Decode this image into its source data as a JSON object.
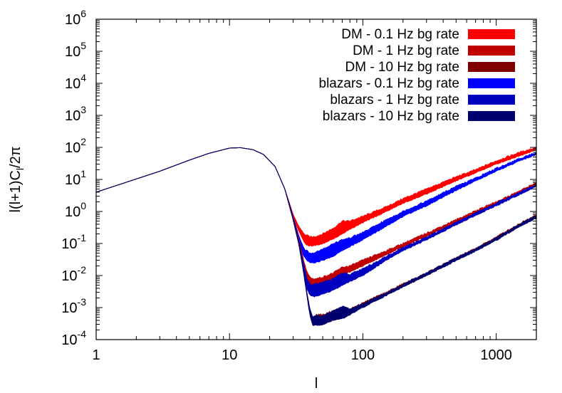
{
  "chart_data": {
    "type": "line",
    "title": "",
    "xlabel": "l",
    "ylabel": "l(l+1)C_l/2π",
    "ylabel_parts": {
      "a": "l(l+1)C",
      "sub": "l",
      "b": "/2π"
    },
    "xscale": "log",
    "yscale": "log",
    "xlim": [
      1,
      2000
    ],
    "ylim": [
      0.0001,
      1000000
    ],
    "grid": false,
    "legend_position": "top-right",
    "x_ticks": [
      {
        "value": 1,
        "label": "1"
      },
      {
        "value": 10,
        "label": "10"
      },
      {
        "value": 100,
        "label": "100"
      },
      {
        "value": 1000,
        "label": "1000"
      }
    ],
    "y_ticks": [
      {
        "value": 0.0001,
        "base": "10",
        "exp": "-4"
      },
      {
        "value": 0.001,
        "base": "10",
        "exp": "-3"
      },
      {
        "value": 0.01,
        "base": "10",
        "exp": "-2"
      },
      {
        "value": 0.1,
        "base": "10",
        "exp": "-1"
      },
      {
        "value": 1,
        "base": "10",
        "exp": "0"
      },
      {
        "value": 10,
        "base": "10",
        "exp": "1"
      },
      {
        "value": 100,
        "base": "10",
        "exp": "2"
      },
      {
        "value": 1000,
        "base": "10",
        "exp": "3"
      },
      {
        "value": 10000,
        "base": "10",
        "exp": "4"
      },
      {
        "value": 100000,
        "base": "10",
        "exp": "5"
      },
      {
        "value": 1000000,
        "base": "10",
        "exp": "6"
      }
    ],
    "series": [
      {
        "name": "DM - 0.1 Hz bg rate",
        "color": "#ff0000",
        "x": [
          1,
          3,
          5,
          7,
          10,
          12,
          15,
          18,
          22,
          26,
          30,
          33,
          36,
          38,
          40,
          42,
          45,
          50,
          60,
          70,
          80,
          100,
          150,
          200,
          300,
          500,
          700,
          1000,
          1500,
          2000
        ],
        "lower": [
          4,
          18,
          40,
          65,
          95,
          98,
          85,
          60,
          25,
          5,
          0.7,
          0.25,
          0.12,
          0.09,
          0.085,
          0.085,
          0.09,
          0.1,
          0.14,
          0.2,
          0.28,
          0.45,
          1.0,
          1.8,
          3.5,
          9,
          16,
          30,
          55,
          85
        ],
        "upper": [
          4,
          18,
          40,
          65,
          95,
          98,
          85,
          60,
          25,
          5,
          0.8,
          0.35,
          0.2,
          0.18,
          0.16,
          0.16,
          0.17,
          0.2,
          0.3,
          0.5,
          0.5,
          0.7,
          1.4,
          2.5,
          5,
          12,
          20,
          38,
          70,
          100
        ]
      },
      {
        "name": "DM - 1 Hz bg rate",
        "color": "#c00000",
        "x": [
          1,
          3,
          5,
          7,
          10,
          12,
          15,
          18,
          22,
          26,
          30,
          33,
          36,
          38,
          40,
          42,
          45,
          50,
          60,
          70,
          80,
          100,
          150,
          200,
          300,
          500,
          700,
          1000,
          1500,
          2000
        ],
        "lower": [
          4,
          18,
          40,
          65,
          95,
          98,
          85,
          60,
          25,
          5,
          0.6,
          0.12,
          0.02,
          0.008,
          0.005,
          0.0045,
          0.0045,
          0.005,
          0.007,
          0.01,
          0.013,
          0.02,
          0.045,
          0.08,
          0.17,
          0.45,
          0.85,
          1.7,
          3.6,
          6.5
        ],
        "upper": [
          4,
          18,
          40,
          65,
          95,
          98,
          85,
          60,
          25,
          5,
          0.7,
          0.15,
          0.03,
          0.013,
          0.009,
          0.008,
          0.008,
          0.009,
          0.012,
          0.018,
          0.02,
          0.03,
          0.06,
          0.1,
          0.21,
          0.55,
          1.05,
          2.0,
          4.4,
          8
        ]
      },
      {
        "name": "DM - 10 Hz bg rate",
        "color": "#800000",
        "x": [
          1,
          3,
          5,
          7,
          10,
          12,
          15,
          18,
          22,
          26,
          30,
          33,
          36,
          38,
          40,
          42,
          45,
          50,
          60,
          70,
          80,
          100,
          150,
          200,
          300,
          500,
          700,
          1000,
          1500,
          2000
        ],
        "lower": [
          4,
          18,
          40,
          65,
          95,
          98,
          85,
          60,
          25,
          5,
          0.55,
          0.1,
          0.012,
          0.0025,
          0.0006,
          0.0003,
          0.0003,
          0.0003,
          0.0004,
          0.0005,
          0.0007,
          0.0011,
          0.0025,
          0.0045,
          0.01,
          0.03,
          0.06,
          0.13,
          0.35,
          0.65
        ],
        "upper": [
          4,
          18,
          40,
          65,
          95,
          98,
          85,
          60,
          25,
          5,
          0.6,
          0.12,
          0.015,
          0.003,
          0.0009,
          0.0005,
          0.0006,
          0.0006,
          0.0008,
          0.001,
          0.0009,
          0.0014,
          0.003,
          0.0055,
          0.012,
          0.036,
          0.07,
          0.16,
          0.42,
          0.8
        ]
      },
      {
        "name": "blazars - 0.1 Hz bg rate",
        "color": "#0000ff",
        "x": [
          1,
          3,
          5,
          7,
          10,
          12,
          15,
          18,
          22,
          26,
          30,
          33,
          36,
          38,
          40,
          42,
          45,
          50,
          60,
          70,
          80,
          100,
          150,
          200,
          300,
          500,
          700,
          1000,
          1500,
          2000
        ],
        "lower": [
          4,
          18,
          40,
          65,
          95,
          98,
          85,
          60,
          25,
          5,
          0.6,
          0.12,
          0.04,
          0.03,
          0.025,
          0.025,
          0.026,
          0.03,
          0.04,
          0.06,
          0.08,
          0.13,
          0.35,
          0.7,
          1.5,
          4.5,
          9,
          18,
          38,
          60
        ],
        "upper": [
          4,
          18,
          40,
          65,
          95,
          98,
          85,
          60,
          25,
          5,
          0.7,
          0.18,
          0.07,
          0.06,
          0.05,
          0.05,
          0.055,
          0.065,
          0.1,
          0.13,
          0.15,
          0.22,
          0.55,
          1.0,
          2.1,
          6,
          11,
          22,
          45,
          70
        ]
      },
      {
        "name": "blazars - 1 Hz bg rate",
        "color": "#0000c0",
        "x": [
          1,
          3,
          5,
          7,
          10,
          12,
          15,
          18,
          22,
          26,
          30,
          33,
          36,
          38,
          40,
          42,
          45,
          50,
          60,
          70,
          80,
          100,
          150,
          200,
          300,
          500,
          700,
          1000,
          1500,
          2000
        ],
        "lower": [
          4,
          18,
          40,
          65,
          95,
          98,
          85,
          60,
          25,
          5,
          0.55,
          0.1,
          0.015,
          0.004,
          0.0025,
          0.0022,
          0.0023,
          0.0026,
          0.0035,
          0.005,
          0.0065,
          0.01,
          0.03,
          0.06,
          0.13,
          0.38,
          0.75,
          1.5,
          3.4,
          6
        ],
        "upper": [
          4,
          18,
          40,
          65,
          95,
          98,
          85,
          60,
          25,
          5,
          0.65,
          0.13,
          0.022,
          0.008,
          0.0055,
          0.005,
          0.0055,
          0.006,
          0.008,
          0.012,
          0.011,
          0.016,
          0.04,
          0.075,
          0.16,
          0.45,
          0.9,
          1.8,
          4,
          7
        ]
      },
      {
        "name": "blazars - 10 Hz bg rate",
        "color": "#000070",
        "x": [
          1,
          3,
          5,
          7,
          10,
          12,
          15,
          18,
          22,
          26,
          30,
          33,
          36,
          38,
          40,
          42,
          45,
          50,
          60,
          70,
          80,
          100,
          150,
          200,
          300,
          500,
          700,
          1000,
          1500,
          2000
        ],
        "lower": [
          4,
          18,
          40,
          65,
          95,
          98,
          85,
          60,
          25,
          5,
          0.55,
          0.1,
          0.012,
          0.0025,
          0.0006,
          0.00028,
          0.00028,
          0.0003,
          0.0004,
          0.00045,
          0.0006,
          0.001,
          0.0024,
          0.0044,
          0.01,
          0.029,
          0.058,
          0.125,
          0.34,
          0.62
        ],
        "upper": [
          4,
          18,
          40,
          65,
          95,
          98,
          85,
          60,
          25,
          5,
          0.6,
          0.12,
          0.015,
          0.003,
          0.0009,
          0.0005,
          0.00055,
          0.00055,
          0.0008,
          0.0011,
          0.0009,
          0.0013,
          0.0029,
          0.0053,
          0.012,
          0.035,
          0.068,
          0.15,
          0.4,
          0.75
        ]
      }
    ]
  }
}
